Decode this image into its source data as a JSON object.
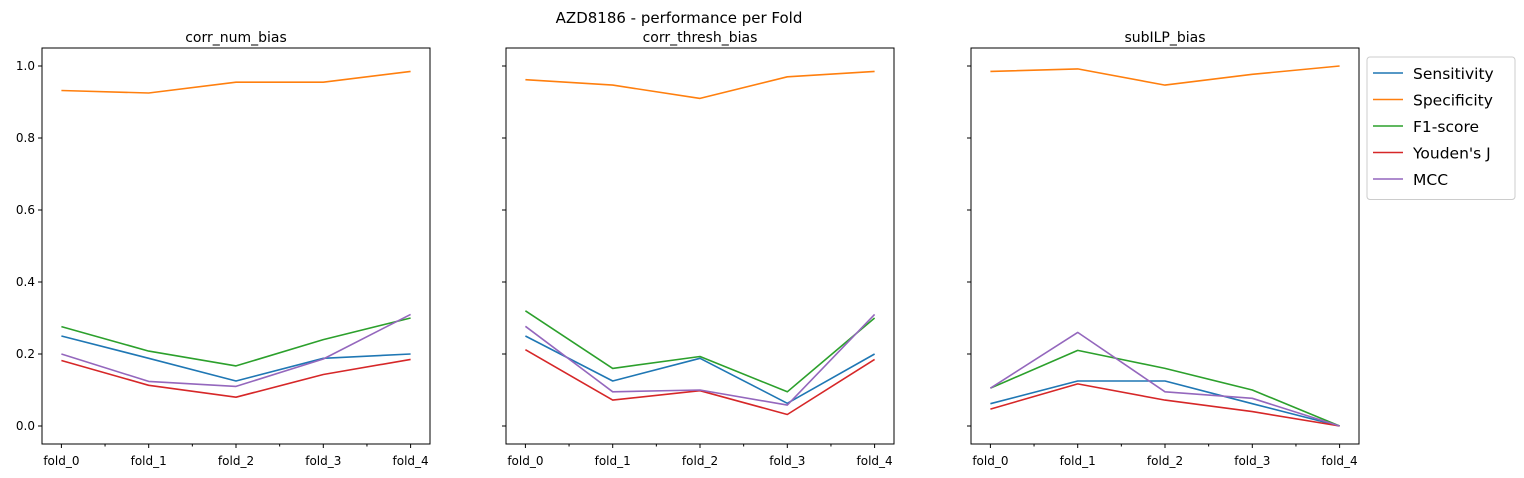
{
  "figure": {
    "suptitle": "AZD8186 - performance per Fold"
  },
  "legend": {
    "placement": "upper-right, outside last panel",
    "entries": [
      "Sensitivity",
      "Specificity",
      "F1-score",
      "Youden's J",
      "MCC"
    ]
  },
  "colors": {
    "Sensitivity": "#1f77b4",
    "Specificity": "#ff7f0e",
    "F1-score": "#2ca02c",
    "Youden's J": "#d62728",
    "MCC": "#9467bd"
  },
  "chart_data": [
    {
      "type": "line",
      "title": "corr_num_bias",
      "categories": [
        "fold_0",
        "fold_1",
        "fold_2",
        "fold_3",
        "fold_4"
      ],
      "ylim": [
        -0.05,
        1.05
      ],
      "yticks": [
        "0.0",
        "0.2",
        "0.4",
        "0.6",
        "0.8",
        "1.0"
      ],
      "series": [
        {
          "name": "Sensitivity",
          "values": [
            0.25,
            0.188,
            0.125,
            0.188,
            0.2
          ]
        },
        {
          "name": "Specificity",
          "values": [
            0.932,
            0.925,
            0.955,
            0.955,
            0.985
          ]
        },
        {
          "name": "F1-score",
          "values": [
            0.276,
            0.208,
            0.167,
            0.24,
            0.3
          ]
        },
        {
          "name": "Youden's J",
          "values": [
            0.182,
            0.113,
            0.08,
            0.143,
            0.185
          ]
        },
        {
          "name": "MCC",
          "values": [
            0.2,
            0.124,
            0.11,
            0.186,
            0.31
          ]
        }
      ]
    },
    {
      "type": "line",
      "title": "corr_thresh_bias",
      "categories": [
        "fold_0",
        "fold_1",
        "fold_2",
        "fold_3",
        "fold_4"
      ],
      "ylim": [
        -0.05,
        1.05
      ],
      "yticks": [
        "0.0",
        "0.2",
        "0.4",
        "0.6",
        "0.8",
        "1.0"
      ],
      "series": [
        {
          "name": "Sensitivity",
          "values": [
            0.25,
            0.125,
            0.188,
            0.063,
            0.2
          ]
        },
        {
          "name": "Specificity",
          "values": [
            0.962,
            0.947,
            0.91,
            0.97,
            0.985
          ]
        },
        {
          "name": "F1-score",
          "values": [
            0.32,
            0.16,
            0.193,
            0.095,
            0.3
          ]
        },
        {
          "name": "Youden's J",
          "values": [
            0.212,
            0.072,
            0.098,
            0.032,
            0.185
          ]
        },
        {
          "name": "MCC",
          "values": [
            0.277,
            0.095,
            0.1,
            0.058,
            0.31
          ]
        }
      ]
    },
    {
      "type": "line",
      "title": "subILP_bias",
      "categories": [
        "fold_0",
        "fold_1",
        "fold_2",
        "fold_3",
        "fold_4"
      ],
      "ylim": [
        -0.05,
        1.05
      ],
      "yticks": [
        "0.0",
        "0.2",
        "0.4",
        "0.6",
        "0.8",
        "1.0"
      ],
      "series": [
        {
          "name": "Sensitivity",
          "values": [
            0.062,
            0.125,
            0.125,
            0.062,
            0.0
          ]
        },
        {
          "name": "Specificity",
          "values": [
            0.985,
            0.992,
            0.947,
            0.977,
            1.0
          ]
        },
        {
          "name": "F1-score",
          "values": [
            0.105,
            0.21,
            0.16,
            0.1,
            0.0
          ]
        },
        {
          "name": "Youden's J",
          "values": [
            0.047,
            0.117,
            0.072,
            0.04,
            0.0
          ]
        },
        {
          "name": "MCC",
          "values": [
            0.105,
            0.26,
            0.095,
            0.077,
            0.0
          ]
        }
      ]
    }
  ]
}
